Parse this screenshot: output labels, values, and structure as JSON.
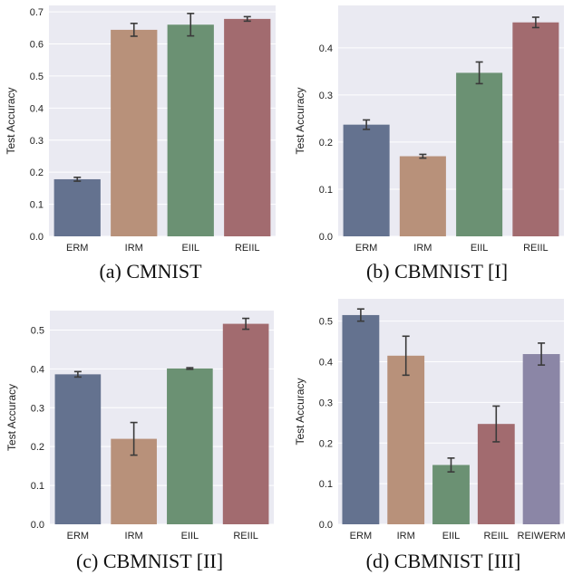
{
  "chart_data": [
    {
      "type": "bar",
      "caption": "(a) CMNIST",
      "ylabel": "Test Accuracy",
      "xlabel": "",
      "ylim": [
        0,
        0.72
      ],
      "yticks": [
        "0.0",
        "0.1",
        "0.2",
        "0.3",
        "0.4",
        "0.5",
        "0.6",
        "0.7"
      ],
      "categories": [
        "ERM",
        "IRM",
        "EIIL",
        "REIIL"
      ],
      "values": [
        0.178,
        0.644,
        0.66,
        0.678
      ],
      "errors": [
        0.006,
        0.02,
        0.035,
        0.007
      ],
      "colors": [
        "#64728f",
        "#b8917a",
        "#6b9173",
        "#a26b6f"
      ],
      "grid": true
    },
    {
      "type": "bar",
      "caption": "(b) CBMNIST [I]",
      "ylabel": "Test Accuracy",
      "xlabel": "",
      "ylim": [
        0,
        0.49
      ],
      "yticks": [
        "0.0",
        "0.1",
        "0.2",
        "0.3",
        "0.4"
      ],
      "categories": [
        "ERM",
        "IRM",
        "EIIL",
        "REIIL"
      ],
      "values": [
        0.237,
        0.17,
        0.347,
        0.454
      ],
      "errors": [
        0.01,
        0.004,
        0.023,
        0.011
      ],
      "colors": [
        "#64728f",
        "#b8917a",
        "#6b9173",
        "#a26b6f"
      ],
      "grid": true
    },
    {
      "type": "bar",
      "caption": "(c) CBMNIST [II]",
      "ylabel": "Test Accuracy",
      "xlabel": "",
      "ylim": [
        0,
        0.55
      ],
      "yticks": [
        "0.0",
        "0.1",
        "0.2",
        "0.3",
        "0.4",
        "0.5"
      ],
      "categories": [
        "ERM",
        "IRM",
        "EIIL",
        "REIIL"
      ],
      "values": [
        0.386,
        0.22,
        0.401,
        0.516
      ],
      "errors": [
        0.007,
        0.042,
        0.002,
        0.014
      ],
      "colors": [
        "#64728f",
        "#b8917a",
        "#6b9173",
        "#a26b6f"
      ],
      "grid": true
    },
    {
      "type": "bar",
      "caption": "(d) CBMNIST [III]",
      "ylabel": "Test Accuracy",
      "xlabel": "",
      "ylim": [
        0,
        0.555
      ],
      "yticks": [
        "0.0",
        "0.1",
        "0.2",
        "0.3",
        "0.4",
        "0.5"
      ],
      "categories": [
        "ERM",
        "IRM",
        "EIIL",
        "REIIL",
        "REIWERM"
      ],
      "values": [
        0.515,
        0.415,
        0.146,
        0.247,
        0.419
      ],
      "errors": [
        0.015,
        0.048,
        0.017,
        0.044,
        0.027
      ],
      "colors": [
        "#64728f",
        "#b8917a",
        "#6b9173",
        "#a26b6f",
        "#8b86a6"
      ],
      "grid": true
    }
  ]
}
